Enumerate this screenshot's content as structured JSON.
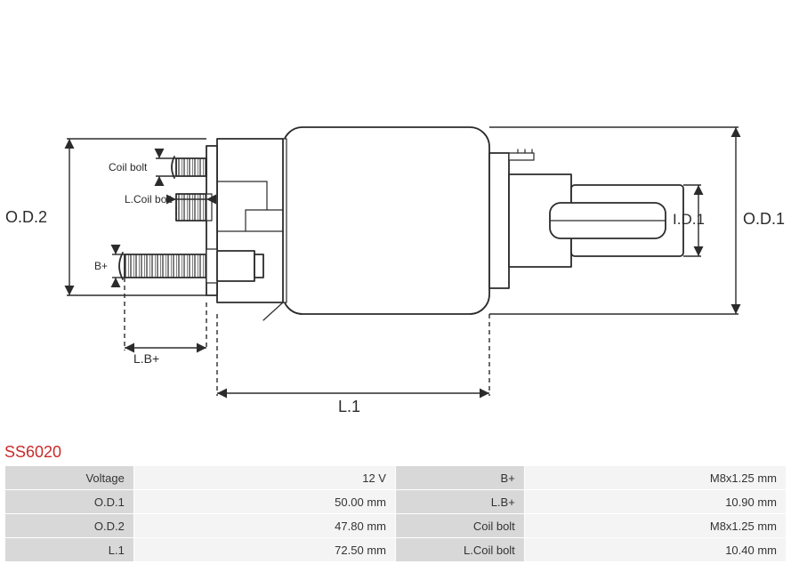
{
  "part_number": "SS6020",
  "diagram": {
    "labels": {
      "od1": "O.D.1",
      "od2": "O.D.2",
      "id1": "I.D.1",
      "l1": "L.1",
      "lbplus": "L.B+",
      "bplus": "B+",
      "coil_bolt": "Coil bolt",
      "lcoil_bolt": "L.Coil bolt"
    },
    "colors": {
      "stroke": "#2b2b2b",
      "stroke_width": 1.8,
      "fill": "#ffffff",
      "label_color": "#2b2b2b",
      "label_size": 18,
      "small_label_size": 12
    }
  },
  "specs": {
    "rows": [
      {
        "l1": "Voltage",
        "v1": "12 V",
        "l2": "B+",
        "v2": "M8x1.25 mm"
      },
      {
        "l1": "O.D.1",
        "v1": "50.00 mm",
        "l2": "L.B+",
        "v2": "10.90 mm"
      },
      {
        "l1": "O.D.2",
        "v1": "47.80 mm",
        "l2": "Coil bolt",
        "v2": "M8x1.25 mm"
      },
      {
        "l1": "L.1",
        "v1": "72.50 mm",
        "l2": "L.Coil bolt",
        "v2": "10.40 mm"
      }
    ]
  }
}
